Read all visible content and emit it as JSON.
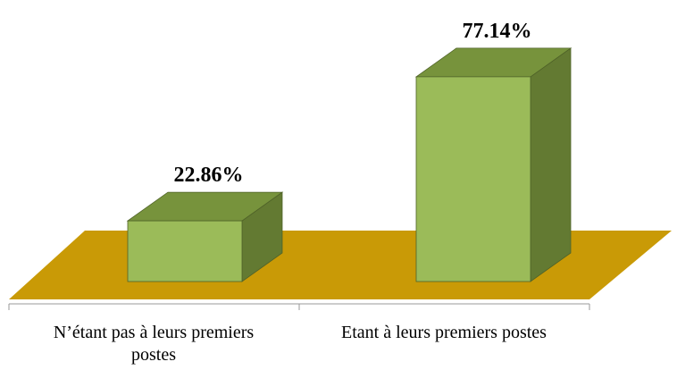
{
  "chart_data": {
    "type": "bar3d",
    "categories": [
      "N’étant pas à leurs premiers postes",
      "Etant à leurs premiers postes"
    ],
    "values": [
      22.86,
      77.14
    ],
    "value_labels": [
      "22.86%",
      "77.14%"
    ],
    "color": "#9bbb59"
  }
}
